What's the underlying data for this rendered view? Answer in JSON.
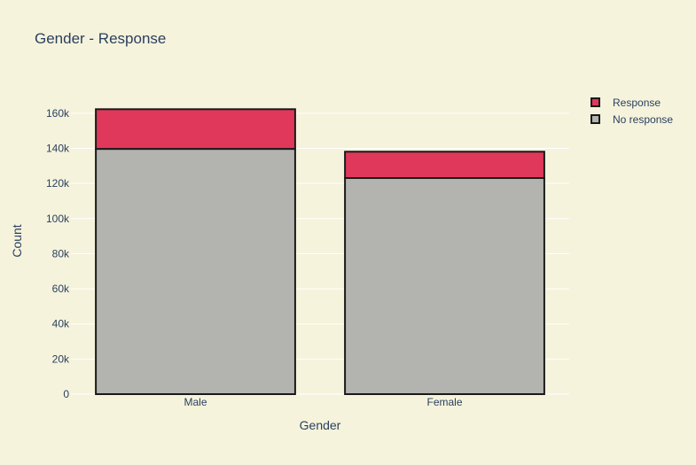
{
  "chart_data": {
    "type": "bar",
    "barmode": "stack",
    "title": "Gender - Response",
    "xlabel": "Gender",
    "ylabel": "Count",
    "categories": [
      "Male",
      "Female"
    ],
    "series": [
      {
        "name": "No response",
        "values": [
          139700,
          123100
        ],
        "color": "#b3b3af"
      },
      {
        "name": "Response",
        "values": [
          22600,
          15000
        ],
        "color": "#e0385a"
      }
    ],
    "ylim": [
      0,
      168000
    ],
    "yticks": [
      0,
      20000,
      40000,
      60000,
      80000,
      100000,
      120000,
      140000,
      160000
    ],
    "ytick_labels": [
      "0",
      "20k",
      "40k",
      "60k",
      "80k",
      "100k",
      "120k",
      "140k",
      "160k"
    ],
    "legend": {
      "placement": "top-right",
      "entries": [
        {
          "name": "Response",
          "color": "#e0385a"
        },
        {
          "name": "No response",
          "color": "#b3b3af"
        }
      ]
    },
    "grid": true
  }
}
